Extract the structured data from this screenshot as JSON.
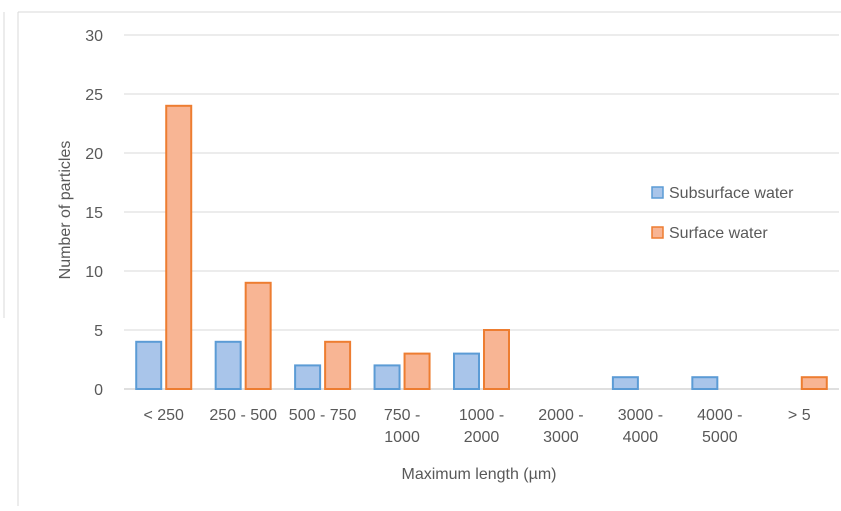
{
  "chart_data": {
    "type": "bar",
    "categories": [
      [
        "< 250"
      ],
      [
        "250 - 500"
      ],
      [
        "500 - 750"
      ],
      [
        "750 -",
        "1000"
      ],
      [
        "1000 -",
        "2000"
      ],
      [
        "2000 -",
        "3000"
      ],
      [
        "3000 -",
        "4000"
      ],
      [
        "4000 -",
        "5000"
      ],
      [
        "> 5"
      ]
    ],
    "series": [
      {
        "name": "Subsurface water",
        "values": [
          4,
          4,
          2,
          2,
          3,
          0,
          1,
          1,
          0
        ],
        "fill": "#a9c5ea",
        "stroke": "#5b9bd5"
      },
      {
        "name": "Surface water",
        "values": [
          24,
          9,
          4,
          3,
          5,
          0,
          0,
          0,
          1
        ],
        "fill": "#f8b594",
        "stroke": "#ed7d31"
      }
    ],
    "xlabel": "Maximum length (µm)",
    "ylabel": "Number of particles",
    "ylim": [
      0,
      30
    ],
    "yticks": [
      "0",
      "5",
      "10",
      "15",
      "20",
      "25",
      "30"
    ],
    "grid": true,
    "legend_position": "right",
    "gridline_color": "#d9d9d9",
    "text_color": "#595959"
  }
}
